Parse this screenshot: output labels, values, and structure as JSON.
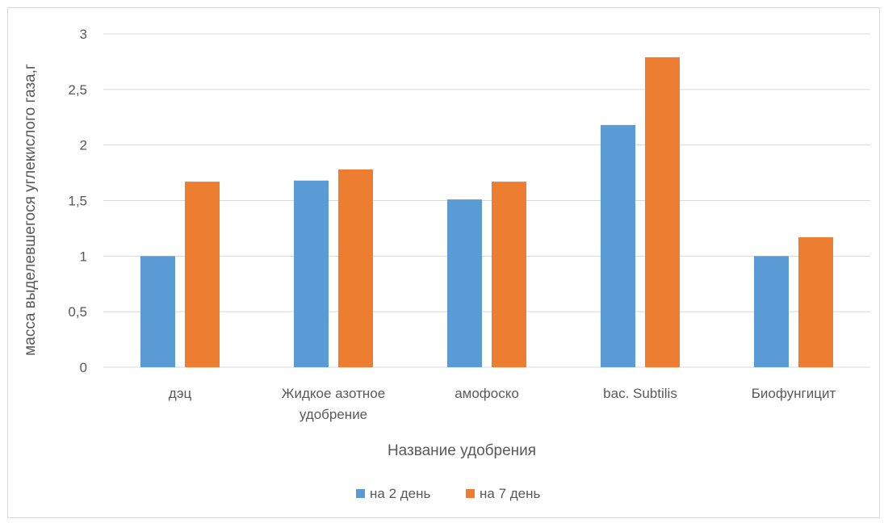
{
  "chart_data": {
    "type": "bar",
    "title": "",
    "xlabel": "Название удобрения",
    "ylabel": "масса выделевшегося углекислого газа,г",
    "categories": [
      [
        "дэц"
      ],
      [
        "Жидкое азотное",
        "удобрение"
      ],
      [
        "амофоско"
      ],
      [
        "bac. Subtilis"
      ],
      [
        "Биофунгицит"
      ]
    ],
    "series": [
      {
        "name": "на 2 день",
        "color": "#5b9bd5",
        "values": [
          1.0,
          1.68,
          1.51,
          2.18,
          1.0
        ]
      },
      {
        "name": "на 7 день",
        "color": "#ed7d31",
        "values": [
          1.67,
          1.78,
          1.67,
          2.79,
          1.17
        ]
      }
    ],
    "ylim": [
      0,
      3
    ],
    "yticks": [
      0,
      0.5,
      1,
      1.5,
      2,
      2.5,
      3
    ],
    "ytick_labels": [
      "0",
      "0,5",
      "1",
      "1,5",
      "2",
      "2,5",
      "3"
    ],
    "grid": true,
    "legend_position": "bottom"
  }
}
